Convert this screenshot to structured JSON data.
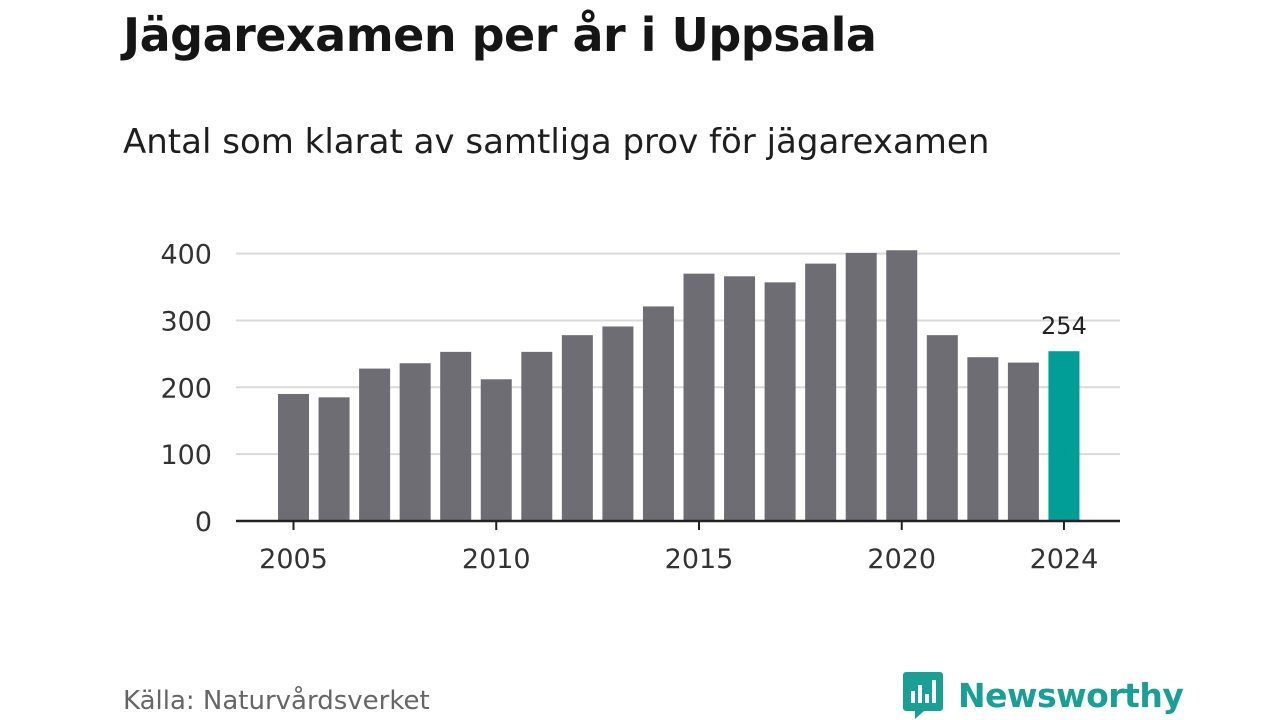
{
  "title": "Jägarexamen per år i Uppsala",
  "subtitle": "Antal som klarat av samtliga prov för jägarexamen",
  "source": "Källa: Naturvårdsverket",
  "logo_text": "Newsworthy",
  "colors": {
    "bar": "#6e6d73",
    "highlight": "#009e96",
    "grid": "#d9d9d9",
    "axis": "#222222",
    "brand": "#1b9e94"
  },
  "chart_data": {
    "type": "bar",
    "title": "Jägarexamen per år i Uppsala",
    "subtitle": "Antal som klarat av samtliga prov för jägarexamen",
    "xlabel": "",
    "ylabel": "",
    "categories": [
      2005,
      2006,
      2007,
      2008,
      2009,
      2010,
      2011,
      2012,
      2013,
      2014,
      2015,
      2016,
      2017,
      2018,
      2019,
      2020,
      2021,
      2022,
      2023,
      2024
    ],
    "values": [
      190,
      185,
      228,
      236,
      253,
      212,
      253,
      278,
      291,
      321,
      370,
      366,
      357,
      385,
      401,
      405,
      278,
      245,
      237,
      254
    ],
    "highlight_category": 2024,
    "highlight_label": "254",
    "ylim": [
      0,
      420
    ],
    "yticks": [
      "0",
      "100",
      "200",
      "300",
      "400"
    ],
    "xticks": [
      "2005",
      "2010",
      "2015",
      "2020",
      "2024"
    ],
    "grid": true,
    "legend": "none"
  }
}
